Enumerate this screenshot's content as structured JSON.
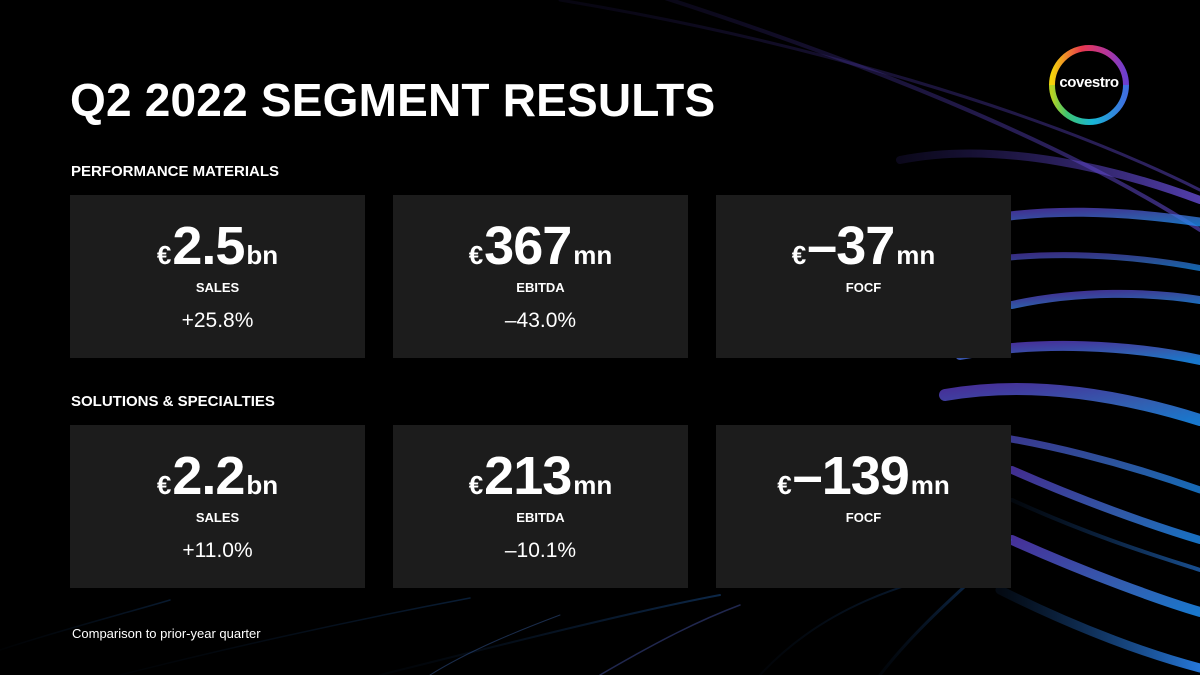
{
  "slide": {
    "title": "Q2 2022 SEGMENT RESULTS",
    "logo_text": "covestro",
    "footnote": "Comparison to prior-year quarter"
  },
  "sections": [
    {
      "name": "PERFORMANCE MATERIALS",
      "cards": [
        {
          "currency": "€",
          "amount": "2.5",
          "unit": "bn",
          "metric": "SALES",
          "change": "+25.8%"
        },
        {
          "currency": "€",
          "amount": "367",
          "unit": "mn",
          "metric": "EBITDA",
          "change": "–43.0%"
        },
        {
          "currency": "€",
          "amount": "–37",
          "unit": "mn",
          "metric": "FOCF",
          "change": ""
        }
      ]
    },
    {
      "name": "SOLUTIONS & SPECIALTIES",
      "cards": [
        {
          "currency": "€",
          "amount": "2.2",
          "unit": "bn",
          "metric": "SALES",
          "change": "+11.0%"
        },
        {
          "currency": "€",
          "amount": "213",
          "unit": "mn",
          "metric": "EBITDA",
          "change": "–10.1%"
        },
        {
          "currency": "€",
          "amount": "–139",
          "unit": "mn",
          "metric": "FOCF",
          "change": ""
        }
      ]
    }
  ],
  "colors": {
    "background": "#000000",
    "card": "#1c1c1c",
    "text": "#ffffff",
    "accent_purple": "#6b4fd8",
    "accent_blue": "#2f7fe6"
  },
  "icons": {
    "logo": "covestro-ring-logo"
  }
}
